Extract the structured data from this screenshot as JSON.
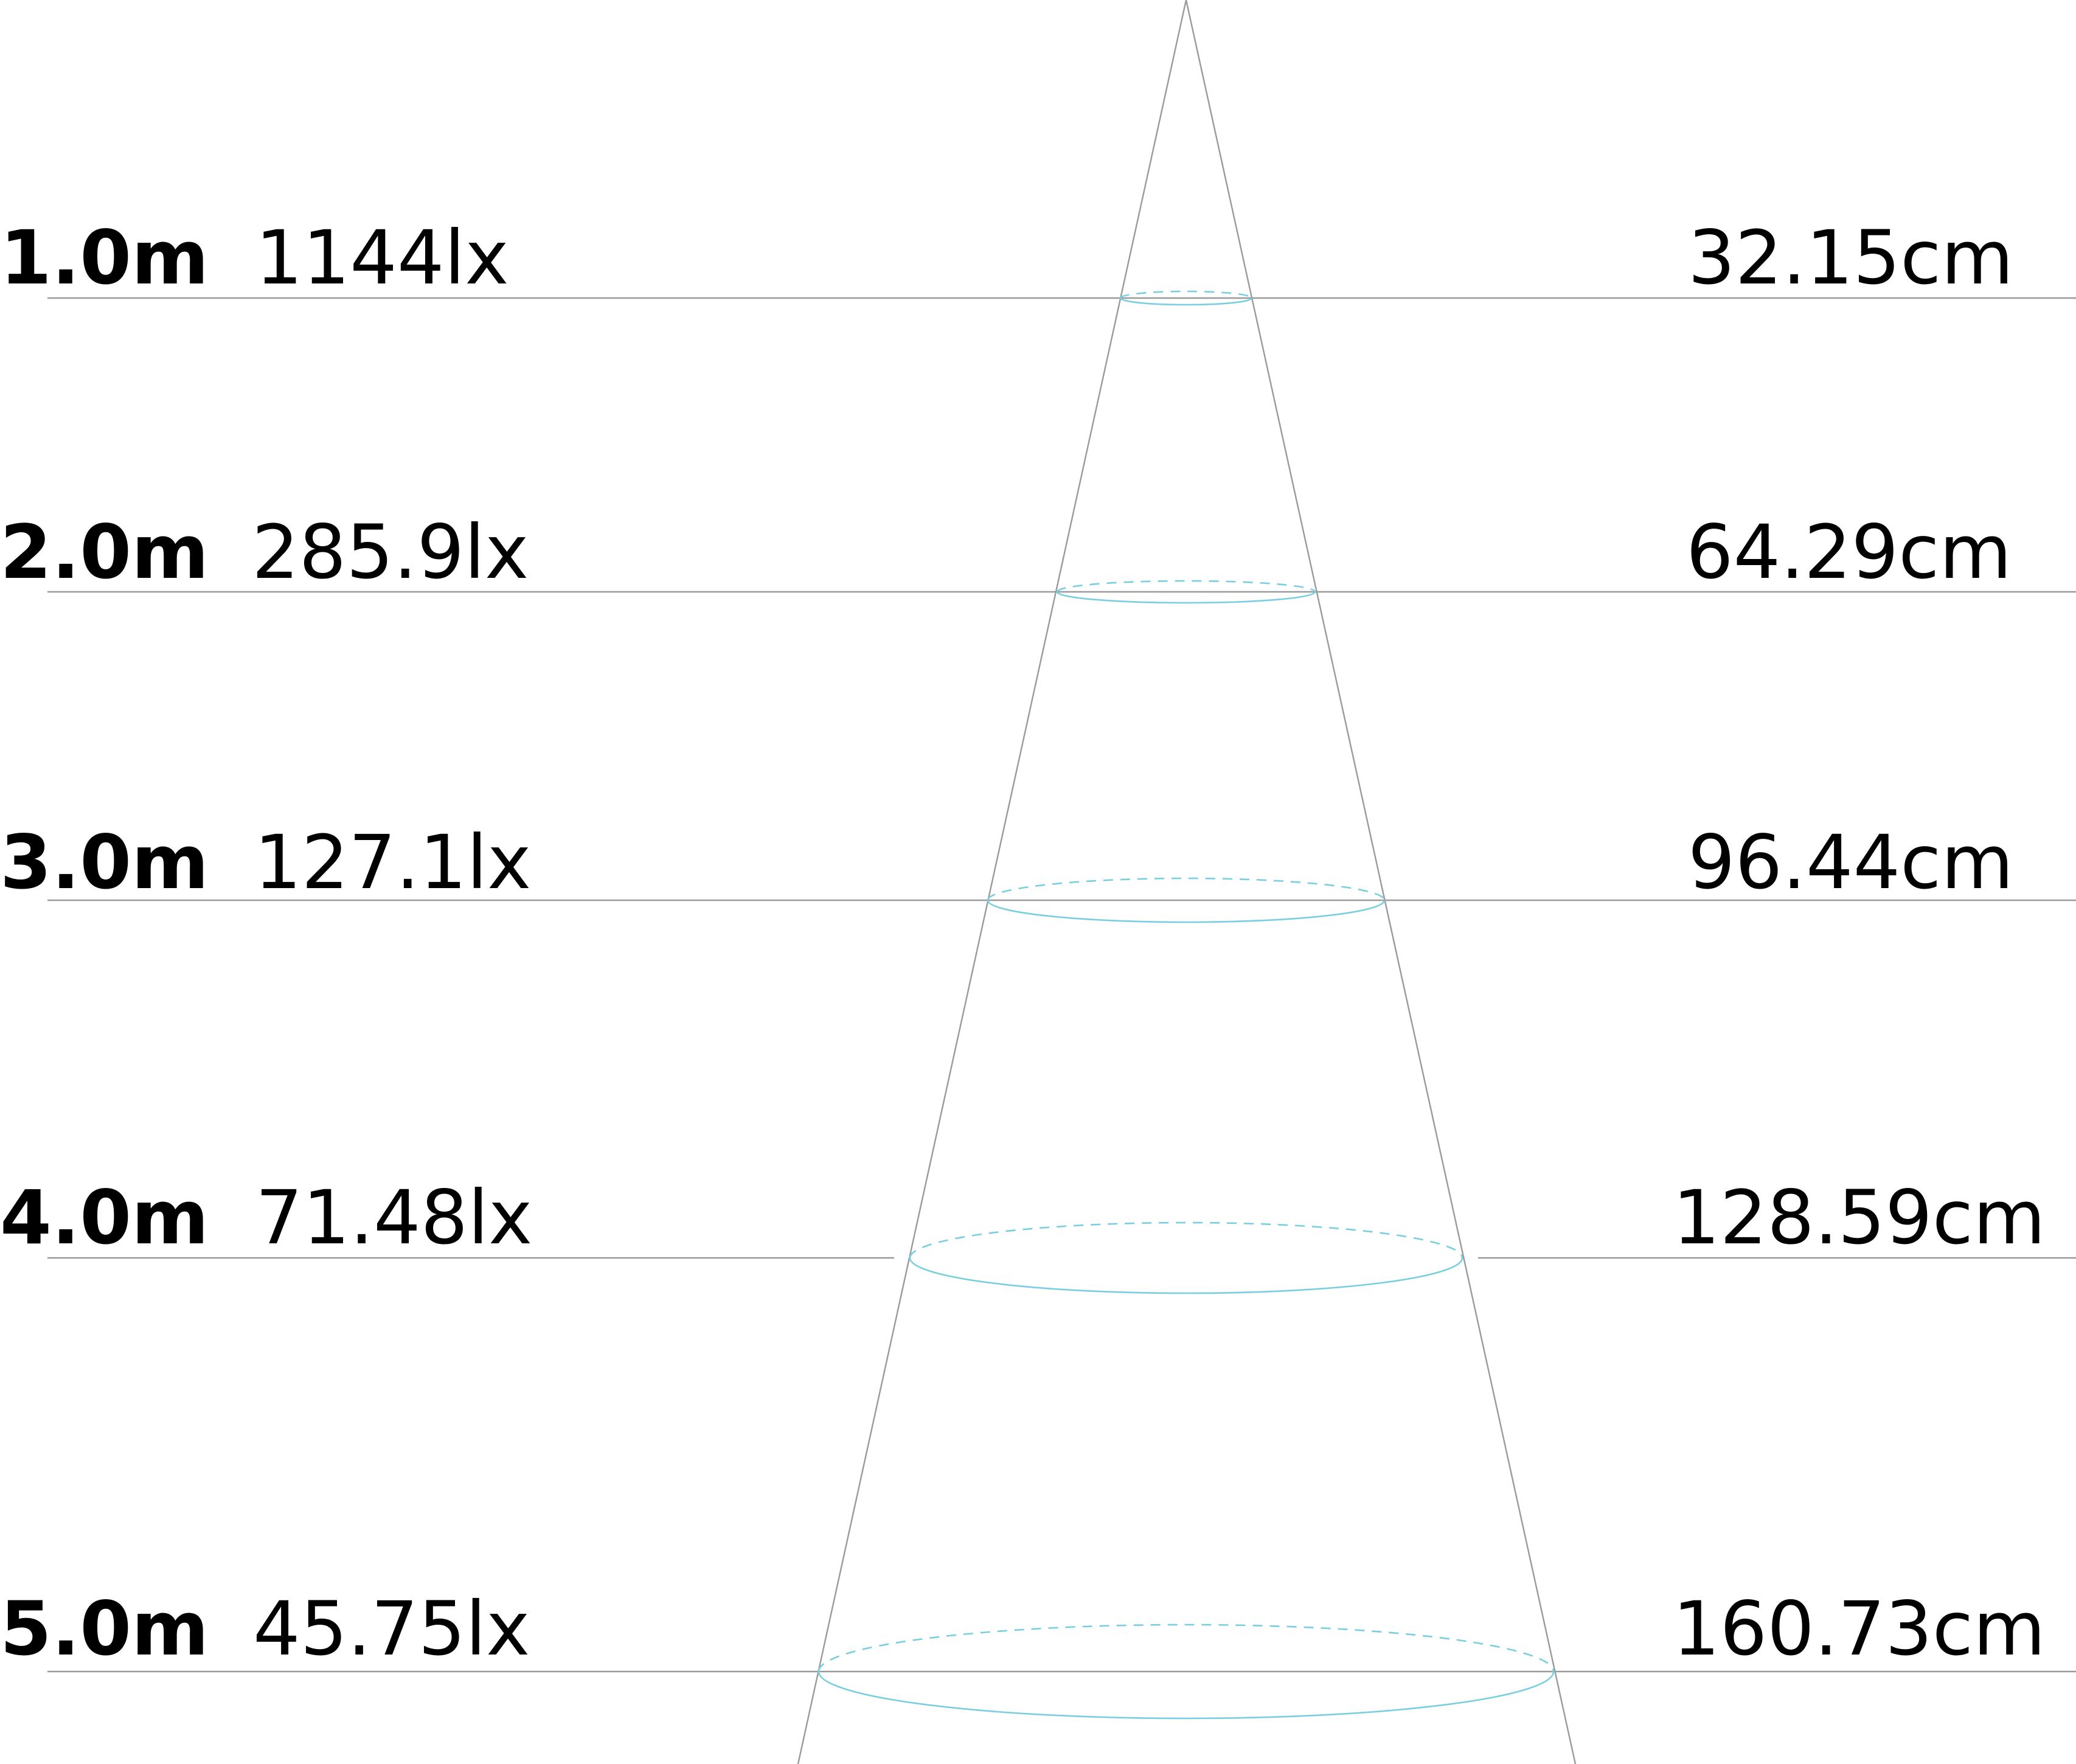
{
  "colors": {
    "background": "#ffffff",
    "text": "#000000",
    "lines": "#9a9a9a",
    "beam_ellipse": "#79cfe0"
  },
  "rows": [
    {
      "distance": "1.0m",
      "illuminance": "1144lx",
      "diameter": "32.15cm"
    },
    {
      "distance": "2.0m",
      "illuminance": "285.9lx",
      "diameter": "64.29cm"
    },
    {
      "distance": "3.0m",
      "illuminance": "127.1lx",
      "diameter": "96.44cm"
    },
    {
      "distance": "4.0m",
      "illuminance": "71.48lx",
      "diameter": "128.59cm"
    },
    {
      "distance": "5.0m",
      "illuminance": "45.75lx",
      "diameter": "160.73cm"
    }
  ]
}
